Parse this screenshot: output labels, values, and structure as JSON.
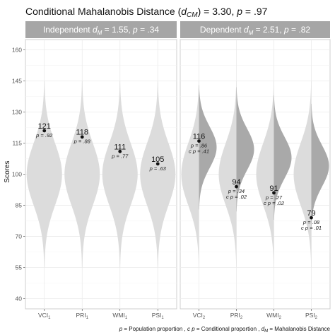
{
  "chart_data": {
    "type": "violin",
    "title": {
      "prefix": "Conditional Mahalanobis Distance (",
      "d": "d",
      "sub": "CM",
      "mid": ") = 3.30, ",
      "p": "p",
      "tail": " = .97"
    },
    "ylabel": "Scores",
    "ylim": [
      35,
      165
    ],
    "yticks": [
      40,
      55,
      70,
      85,
      100,
      115,
      130,
      145,
      160
    ],
    "grid": true,
    "caption": {
      "p1": "p",
      "t1": " = Population proportion , ",
      "p2": "c p",
      "t2": " = Conditional proportion , ",
      "d": "d",
      "sub": "M",
      "t3": " = Mahalanobis Distance"
    },
    "colors": {
      "violin_full": "#dcdcdc",
      "violin_half": "#a9a9a9",
      "strip": "#a6a6a6",
      "panel_border": "#cfcfcf",
      "grid": "#ebebeb",
      "point": "#111111"
    },
    "panels": [
      {
        "strip": {
          "prefix": "Independent ",
          "d": "d",
          "sub": "M",
          "mid": " = 1.55, ",
          "p": "p",
          "tail": " = .34"
        },
        "conditional": false,
        "categories": [
          {
            "base": "VCI",
            "sub": "1",
            "score": 121,
            "p_label": "p",
            "p_val": " = .92"
          },
          {
            "base": "PRI",
            "sub": "1",
            "score": 118,
            "p_label": "p",
            "p_val": " = .88"
          },
          {
            "base": "WMI",
            "sub": "1",
            "score": 111,
            "p_label": "p",
            "p_val": " = .77"
          },
          {
            "base": "PSI",
            "sub": "1",
            "score": 105,
            "p_label": "p",
            "p_val": " = .63"
          }
        ]
      },
      {
        "strip": {
          "prefix": "Dependent ",
          "d": "d",
          "sub": "M",
          "mid": " = 2.51, ",
          "p": "p",
          "tail": " = .82"
        },
        "conditional": true,
        "categories": [
          {
            "base": "VCI",
            "sub": "2",
            "score": 116,
            "p_label": "p",
            "p_val": " = .86",
            "cp_label": "c p",
            "cp_val": " = .41",
            "cond_mean": 113,
            "cond_sd": 10
          },
          {
            "base": "PRI",
            "sub": "2",
            "score": 94,
            "p_label": "p",
            "p_val": " = .34",
            "cp_label": "c p",
            "cp_val": " = .02",
            "cond_mean": 112,
            "cond_sd": 10
          },
          {
            "base": "WMI",
            "sub": "2",
            "score": 91,
            "p_label": "p",
            "p_val": " = .27",
            "cp_label": "c p",
            "cp_val": " = .02",
            "cond_mean": 108,
            "cond_sd": 10
          },
          {
            "base": "PSI",
            "sub": "2",
            "score": 79,
            "p_label": "p",
            "p_val": " = .08",
            "cp_label": "c p",
            "cp_val": " = .01",
            "cond_mean": 104,
            "cond_sd": 10
          }
        ]
      }
    ]
  }
}
